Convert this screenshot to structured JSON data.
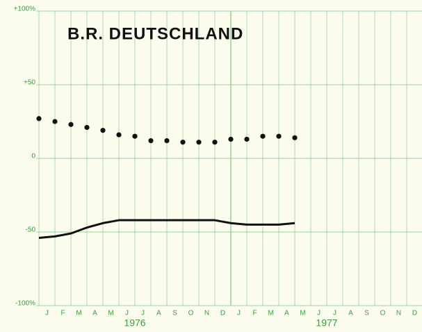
{
  "chart_data": {
    "type": "line",
    "title": "B.R. DEUTSCHLAND",
    "categories": [
      "J",
      "F",
      "M",
      "A",
      "M",
      "J",
      "J",
      "A",
      "S",
      "O",
      "N",
      "D",
      "J",
      "F",
      "M",
      "A",
      "M",
      "J",
      "J",
      "A",
      "S",
      "O",
      "N",
      "D"
    ],
    "groups": [
      {
        "label": "1976",
        "span": 12
      },
      {
        "label": "1977",
        "span": 12
      }
    ],
    "series": [
      {
        "style": "dots",
        "color": "#111111",
        "values": [
          27,
          25,
          23,
          21,
          19,
          16,
          15,
          12,
          12,
          11,
          11,
          11,
          13,
          13,
          15,
          15,
          14,
          null,
          null,
          null,
          null,
          null,
          null,
          null
        ]
      },
      {
        "style": "line",
        "color": "#111111",
        "values": [
          -54,
          -53,
          -51,
          -47,
          -44,
          -42,
          -42,
          -42,
          -42,
          -42,
          -42,
          -42,
          -44,
          -45,
          -45,
          -45,
          -44,
          null,
          null,
          null,
          null,
          null,
          null,
          null
        ]
      }
    ],
    "ylim": [
      -100,
      100
    ],
    "yticks": [
      {
        "value": -100,
        "label": "-100%"
      },
      -50,
      0,
      {
        "value": 50,
        "label": "+50"
      },
      {
        "value": 100,
        "label": "+100%"
      }
    ],
    "grid": true,
    "grid_color": "#9bd49b",
    "label_color": "#3a9e3a"
  }
}
